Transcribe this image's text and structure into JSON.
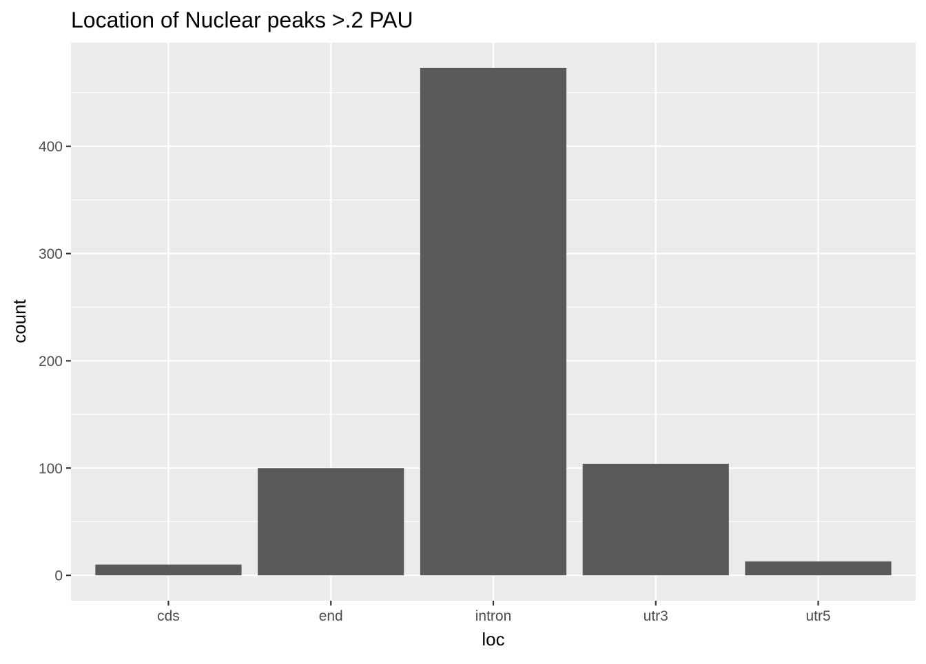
{
  "chart_data": {
    "type": "bar",
    "title": "Location of Nuclear peaks >.2 PAU",
    "xlabel": "loc",
    "ylabel": "count",
    "categories": [
      "cds",
      "end",
      "intron",
      "utr3",
      "utr5"
    ],
    "values": [
      10,
      100,
      473,
      104,
      13
    ],
    "ylim": [
      -23.65,
      496.65
    ],
    "yticks": [
      0,
      100,
      200,
      300,
      400
    ],
    "grid": true,
    "colors": {
      "panel": "#ebebeb",
      "grid": "#ffffff",
      "bar": "#595959",
      "tick_text": "#4d4d4d",
      "tick_mark": "#333333"
    }
  }
}
